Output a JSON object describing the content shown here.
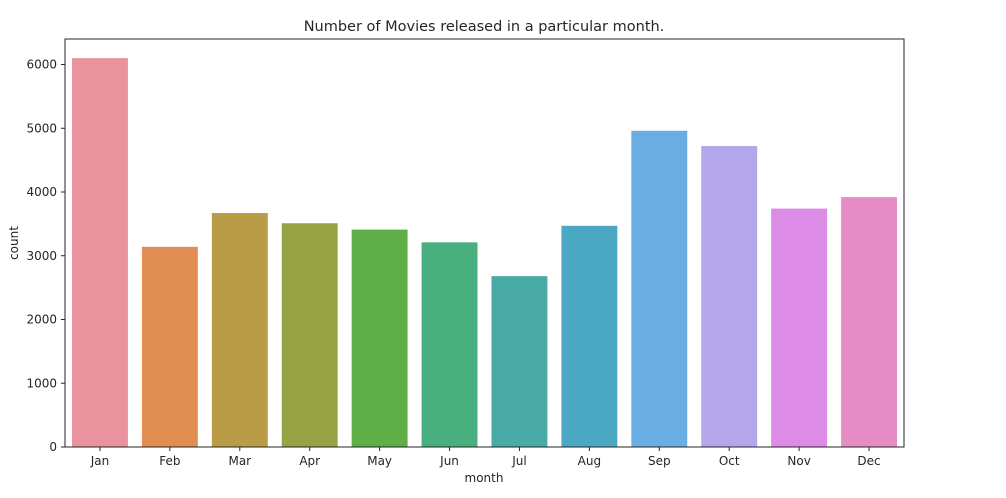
{
  "chart_data": {
    "type": "bar",
    "title": "Number of Movies released in a particular month.",
    "xlabel": "month",
    "ylabel": "count",
    "categories": [
      "Jan",
      "Feb",
      "Mar",
      "Apr",
      "May",
      "Jun",
      "Jul",
      "Aug",
      "Sep",
      "Oct",
      "Nov",
      "Dec"
    ],
    "values": [
      6100,
      3140,
      3670,
      3510,
      3410,
      3210,
      2680,
      3470,
      4960,
      4720,
      3740,
      3920
    ],
    "colors": [
      "#e8939e",
      "#e08e52",
      "#b99b48",
      "#97a345",
      "#5fae47",
      "#4aaf7e",
      "#49aaa6",
      "#4ba8c3",
      "#6aade2",
      "#b4a6ea",
      "#dc8be6",
      "#e68cc4"
    ],
    "ylim": [
      0,
      6400
    ],
    "yticks": [
      0,
      1000,
      2000,
      3000,
      4000,
      5000,
      6000
    ],
    "grid": false,
    "legend": "none"
  }
}
